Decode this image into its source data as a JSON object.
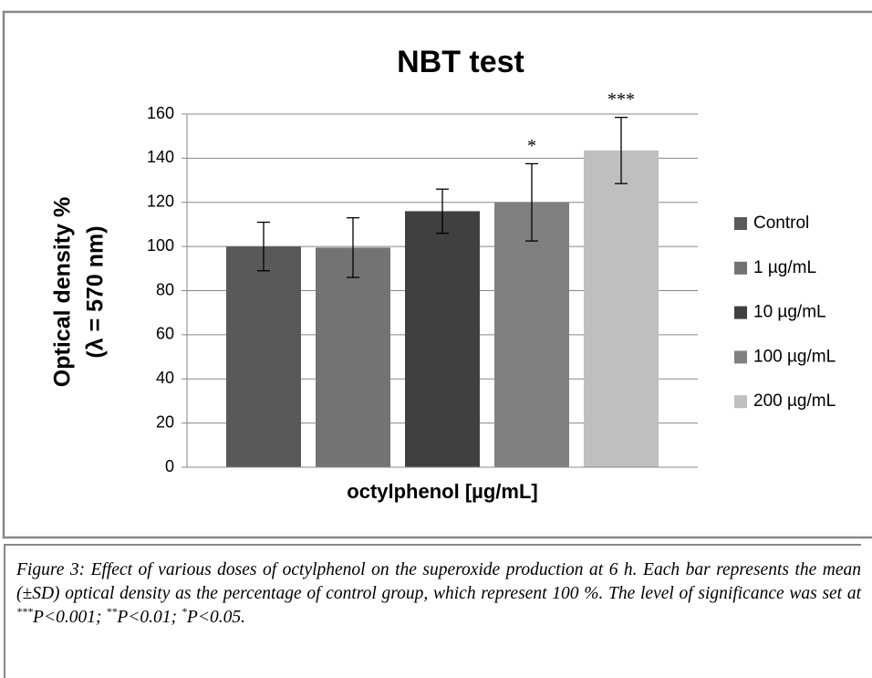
{
  "chart_data": {
    "type": "bar",
    "title": "NBT test",
    "y_label": [
      "Optical density %",
      "(λ = 570 nm)"
    ],
    "x_label": "octylphenol [µg/mL]",
    "categories": [
      null
    ],
    "series": [
      {
        "name": "Control",
        "color": "#595959",
        "values": [
          100
        ],
        "errors": [
          11
        ]
      },
      {
        "name": "1 µg/mL",
        "color": "#737373",
        "values": [
          99.5
        ],
        "errors": [
          13.5
        ]
      },
      {
        "name": "10 µg/mL",
        "color": "#404040",
        "values": [
          116
        ],
        "errors": [
          10
        ]
      },
      {
        "name": "100 µg/mL",
        "color": "#808080",
        "values": [
          120
        ],
        "errors": [
          17.5
        ],
        "label": "*"
      },
      {
        "name": "200 µg/mL",
        "color": "#bfbfbf",
        "values": [
          143.5
        ],
        "errors": [
          15
        ],
        "label": "***"
      }
    ],
    "ylim": [
      0,
      160
    ],
    "yticks": [
      0,
      20,
      40,
      60,
      80,
      100,
      120,
      140,
      160
    ],
    "grid": true,
    "legend": "right"
  },
  "caption": [
    "Figure 3: Effect of various doses of octylphenol on the superoxide production at 6 h. Each bar represents the mean (±SD) optical density as the percentage of control group, which represent 100 %. The level of significance was set at ",
    "***",
    "P<0.001; ",
    "**",
    "P<0.01; ",
    "*",
    "P<0.05."
  ]
}
